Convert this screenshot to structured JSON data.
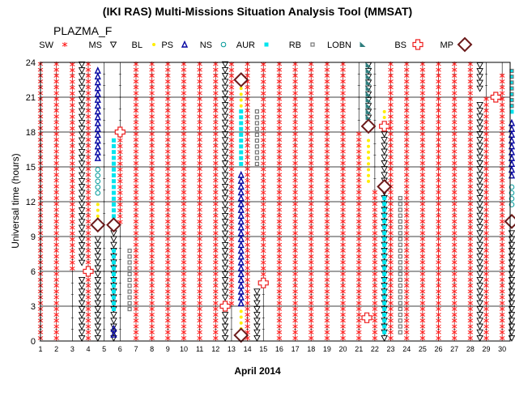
{
  "chart_data": {
    "type": "scatter",
    "title": "(IKI RAS) Multi-Missions Situation Analysis Tool (MMSAT)",
    "subtitle": "PLAZMA_F",
    "xlabel": "April 2014",
    "ylabel": "Universal time (hours)",
    "x_ticks": [
      "1",
      "2",
      "3",
      "4",
      "5",
      "6",
      "7",
      "8",
      "9",
      "10",
      "11",
      "12",
      "13",
      "14",
      "15",
      "16",
      "17",
      "18",
      "19",
      "20",
      "21",
      "22",
      "23",
      "24",
      "25",
      "26",
      "27",
      "28",
      "29",
      "30"
    ],
    "y_ticks": [
      "0",
      "3",
      "6",
      "9",
      "12",
      "15",
      "18",
      "21",
      "24"
    ],
    "xlim": [
      1,
      30.5
    ],
    "ylim": [
      0,
      24
    ],
    "grid": true,
    "legend": [
      {
        "label": "SW",
        "symbol": "asterisk",
        "color": "#ff2020"
      },
      {
        "label": "MS",
        "symbol": "triangle-down",
        "color": "#000000"
      },
      {
        "label": "BL",
        "symbol": "dot",
        "color": "#ffee00"
      },
      {
        "label": "PS",
        "symbol": "triangle-up",
        "color": "#0000a0"
      },
      {
        "label": "NS",
        "symbol": "circle",
        "color": "#009999"
      },
      {
        "label": "AUR",
        "symbol": "square",
        "color": "#00e5ee"
      },
      {
        "label": "RB",
        "symbol": "hollow-square",
        "color": "#777777"
      },
      {
        "label": "LOBN",
        "symbol": "wedge",
        "color": "#2e7d7d"
      },
      {
        "label": "BS",
        "symbol": "cross",
        "color": "#ee2020"
      },
      {
        "label": "MP",
        "symbol": "diamond",
        "color": "#6b1a1a"
      }
    ],
    "series": [
      {
        "name": "SW",
        "runs": [
          {
            "x": 1,
            "y0": 0,
            "y1": 24
          },
          {
            "x": 2,
            "y0": 0,
            "y1": 24
          },
          {
            "x": 3,
            "y0": 6,
            "y1": 24
          },
          {
            "x": 4,
            "y0": 0,
            "y1": 24
          },
          {
            "x": 6,
            "y0": 10,
            "y1": 18
          },
          {
            "x": 7,
            "y0": 0,
            "y1": 24
          },
          {
            "x": 8,
            "y0": 0,
            "y1": 24
          },
          {
            "x": 9,
            "y0": 0,
            "y1": 24
          },
          {
            "x": 10,
            "y0": 0,
            "y1": 24
          },
          {
            "x": 11,
            "y0": 0,
            "y1": 24
          },
          {
            "x": 12,
            "y0": 0,
            "y1": 24
          },
          {
            "x": 13,
            "y0": 3,
            "y1": 24
          },
          {
            "x": 14,
            "y0": 0,
            "y1": 24
          },
          {
            "x": 15,
            "y0": 5,
            "y1": 24
          },
          {
            "x": 16,
            "y0": 0,
            "y1": 24
          },
          {
            "x": 17,
            "y0": 0,
            "y1": 24
          },
          {
            "x": 18,
            "y0": 0,
            "y1": 24
          },
          {
            "x": 19,
            "y0": 0,
            "y1": 24
          },
          {
            "x": 20,
            "y0": 0,
            "y1": 24
          },
          {
            "x": 21,
            "y0": 0,
            "y1": 18
          },
          {
            "x": 22,
            "y0": 0,
            "y1": 13
          },
          {
            "x": 23,
            "y0": 0,
            "y1": 24
          },
          {
            "x": 24,
            "y0": 0,
            "y1": 24
          },
          {
            "x": 25,
            "y0": 0,
            "y1": 24
          },
          {
            "x": 26,
            "y0": 0,
            "y1": 24
          },
          {
            "x": 27,
            "y0": 0,
            "y1": 24
          },
          {
            "x": 28,
            "y0": 0,
            "y1": 24
          },
          {
            "x": 29,
            "y0": 0,
            "y1": 21
          },
          {
            "x": 30,
            "y0": 0,
            "y1": 23
          }
        ]
      },
      {
        "name": "MS",
        "runs": [
          {
            "x": 3.6,
            "y0": 0,
            "y1": 5.5
          },
          {
            "x": 3.6,
            "y0": 6.5,
            "y1": 24
          },
          {
            "x": 4.6,
            "y0": 0,
            "y1": 9
          },
          {
            "x": 5.6,
            "y0": 0,
            "y1": 9.5
          },
          {
            "x": 12.6,
            "y0": 0,
            "y1": 2.5
          },
          {
            "x": 12.6,
            "y0": 3.5,
            "y1": 24
          },
          {
            "x": 14.6,
            "y0": 0,
            "y1": 4.5
          },
          {
            "x": 21.6,
            "y0": 19,
            "y1": 24
          },
          {
            "x": 22.6,
            "y0": 0,
            "y1": 18
          },
          {
            "x": 28.6,
            "y0": 0,
            "y1": 20.5
          },
          {
            "x": 28.6,
            "y0": 21.5,
            "y1": 24
          },
          {
            "x": 30.6,
            "y0": 0,
            "y1": 9.5
          }
        ]
      },
      {
        "name": "BL",
        "runs": [
          {
            "x": 4.6,
            "y0": 9.5,
            "y1": 12
          },
          {
            "x": 13.6,
            "y0": 0.8,
            "y1": 2.8
          },
          {
            "x": 13.6,
            "y0": 20,
            "y1": 23
          },
          {
            "x": 21.6,
            "y0": 13.5,
            "y1": 17.5
          },
          {
            "x": 22.6,
            "y0": 18.5,
            "y1": 20
          },
          {
            "x": 30.6,
            "y0": 10.5,
            "y1": 11
          }
        ]
      },
      {
        "name": "PS",
        "runs": [
          {
            "x": 4.6,
            "y0": 15.5,
            "y1": 23.5
          },
          {
            "x": 5.6,
            "y0": 0.3,
            "y1": 1.5
          },
          {
            "x": 13.6,
            "y0": 3,
            "y1": 14.5
          },
          {
            "x": 30.6,
            "y0": 14,
            "y1": 19
          }
        ]
      },
      {
        "name": "NS",
        "runs": [
          {
            "x": 4.6,
            "y0": 12.5,
            "y1": 15
          },
          {
            "x": 30.6,
            "y0": 11.5,
            "y1": 13.5
          }
        ]
      },
      {
        "name": "AUR",
        "runs": [
          {
            "x": 5.6,
            "y0": 2.5,
            "y1": 8
          },
          {
            "x": 5.6,
            "y0": 10.5,
            "y1": 17.5
          },
          {
            "x": 13.6,
            "y0": 15,
            "y1": 20
          },
          {
            "x": 22.6,
            "y0": 0.5,
            "y1": 12.5
          },
          {
            "x": 30.6,
            "y0": 19.5,
            "y1": 23.5
          }
        ]
      },
      {
        "name": "RB",
        "runs": [
          {
            "x": 6.6,
            "y0": 2.5,
            "y1": 8
          },
          {
            "x": 14.6,
            "y0": 15,
            "y1": 20
          },
          {
            "x": 23.6,
            "y0": 0.5,
            "y1": 12.5
          },
          {
            "x": 30.6,
            "y0": 20,
            "y1": 23.5
          }
        ]
      },
      {
        "name": "LOBN",
        "runs": [
          {
            "x": 21.6,
            "y0": 18.5,
            "y1": 24
          }
        ]
      },
      {
        "name": "BS",
        "points": [
          {
            "x": 4,
            "y": 6
          },
          {
            "x": 6,
            "y": 18
          },
          {
            "x": 12.6,
            "y": 3
          },
          {
            "x": 15,
            "y": 5
          },
          {
            "x": 21.5,
            "y": 2
          },
          {
            "x": 22.6,
            "y": 18.5
          },
          {
            "x": 29.6,
            "y": 21
          }
        ]
      },
      {
        "name": "MP",
        "points": [
          {
            "x": 4.6,
            "y": 10
          },
          {
            "x": 5.6,
            "y": 10
          },
          {
            "x": 13.6,
            "y": 0.5
          },
          {
            "x": 13.6,
            "y": 22.5
          },
          {
            "x": 21.6,
            "y": 18.5
          },
          {
            "x": 22.6,
            "y": 13.3
          },
          {
            "x": 30.6,
            "y": 10.3
          }
        ]
      }
    ]
  }
}
